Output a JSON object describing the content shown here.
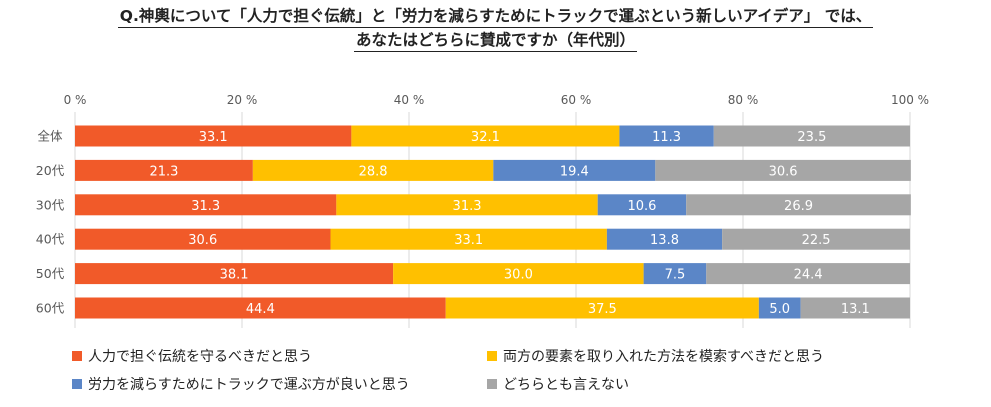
{
  "title": {
    "line1": "Q.神輿について「人力で担ぐ伝統」と「労力を減らすためにトラックで運ぶという新しいアイデア」 では、",
    "line2": "あなたはどちらに賛成ですか（年代別）"
  },
  "chart_data": {
    "type": "bar",
    "orientation": "horizontal",
    "stacked": "percent",
    "categories": [
      "全体",
      "20代",
      "30代",
      "40代",
      "50代",
      "60代"
    ],
    "x_ticks": [
      "0 %",
      "20 %",
      "40 %",
      "60 %",
      "80 %",
      "100 %"
    ],
    "xlim": [
      0,
      100
    ],
    "grid": true,
    "legend_position": "bottom",
    "series": [
      {
        "name": "人力で担ぐ伝統を守るべきだと思う",
        "color": "#F15A29",
        "values": [
          33.1,
          21.3,
          31.3,
          30.6,
          38.1,
          44.4
        ]
      },
      {
        "name": "両方の要素を取り入れた方法を模索すべきだと思う",
        "color": "#FFC000",
        "values": [
          32.1,
          28.8,
          31.3,
          33.1,
          30.0,
          37.5
        ]
      },
      {
        "name": "労力を減らすためにトラックで運ぶ方が良いと思う",
        "color": "#5B86C7",
        "values": [
          11.3,
          19.4,
          10.6,
          13.8,
          7.5,
          5.0
        ]
      },
      {
        "name": "どちらとも言えない",
        "color": "#A6A6A6",
        "values": [
          23.5,
          30.6,
          26.9,
          22.5,
          24.4,
          13.1
        ]
      }
    ]
  }
}
